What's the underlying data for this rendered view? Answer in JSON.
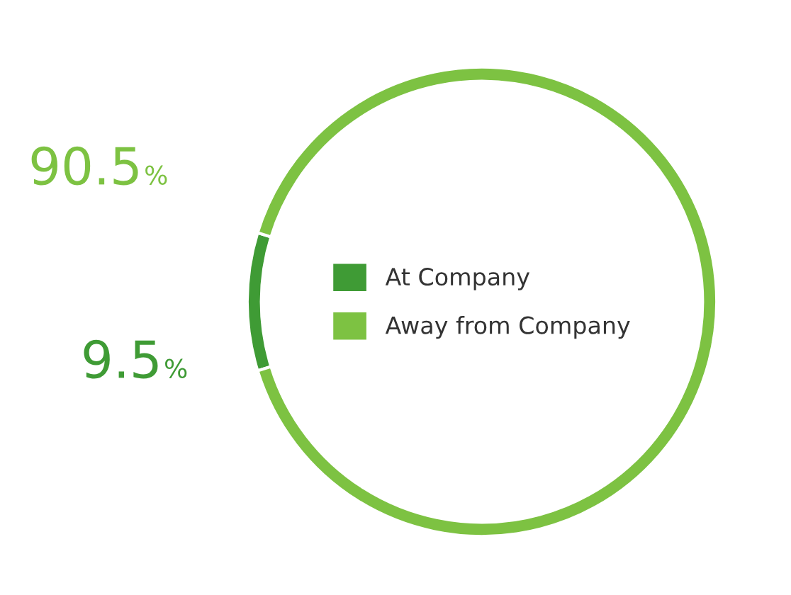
{
  "chart_data": {
    "type": "donut",
    "categories": [
      "At Company",
      "Away from Company"
    ],
    "values": [
      9.5,
      90.5
    ],
    "colors": [
      "#3f9b35",
      "#7dc242"
    ],
    "value_labels": [
      "9.5%",
      "90.5%"
    ],
    "legend": "center"
  }
}
